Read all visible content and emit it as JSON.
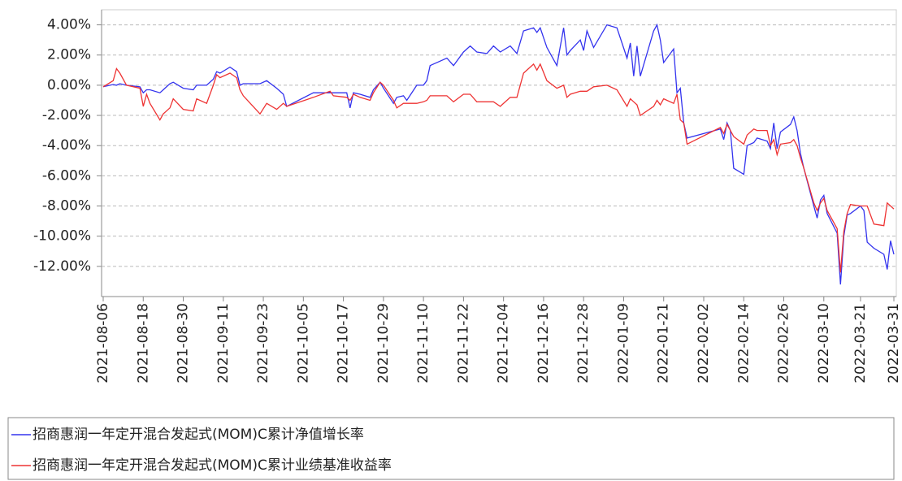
{
  "chart_data": {
    "type": "line",
    "x": [
      "2021-08-06",
      "2021-08-09",
      "2021-08-10",
      "2021-08-11",
      "2021-08-13",
      "2021-08-17",
      "2021-08-18",
      "2021-08-19",
      "2021-08-20",
      "2021-08-23",
      "2021-08-24",
      "2021-08-26",
      "2021-08-27",
      "2021-08-30",
      "2021-09-02",
      "2021-09-03",
      "2021-09-06",
      "2021-09-08",
      "2021-09-09",
      "2021-09-10",
      "2021-09-13",
      "2021-09-15",
      "2021-09-16",
      "2021-09-17",
      "2021-09-22",
      "2021-09-24",
      "2021-09-27",
      "2021-09-29",
      "2021-09-30",
      "2021-10-08",
      "2021-10-13",
      "2021-10-14",
      "2021-10-18",
      "2021-10-19",
      "2021-10-20",
      "2021-10-22",
      "2021-10-25",
      "2021-10-26",
      "2021-10-28",
      "2021-10-29",
      "2021-11-01",
      "2021-11-02",
      "2021-11-04",
      "2021-11-05",
      "2021-11-08",
      "2021-11-10",
      "2021-11-11",
      "2021-11-12",
      "2021-11-15",
      "2021-11-17",
      "2021-11-19",
      "2021-11-22",
      "2021-11-24",
      "2021-11-26",
      "2021-11-29",
      "2021-12-01",
      "2021-12-03",
      "2021-12-06",
      "2021-12-08",
      "2021-12-10",
      "2021-12-13",
      "2021-12-14",
      "2021-12-15",
      "2021-12-17",
      "2021-12-20",
      "2021-12-22",
      "2021-12-23",
      "2021-12-24",
      "2021-12-27",
      "2021-12-28",
      "2021-12-29",
      "2021-12-31",
      "2022-01-04",
      "2022-01-07",
      "2022-01-10",
      "2022-01-11",
      "2022-01-12",
      "2022-01-13",
      "2022-01-14",
      "2022-01-18",
      "2022-01-19",
      "2022-01-20",
      "2022-01-21",
      "2022-01-24",
      "2022-01-25",
      "2022-01-26",
      "2022-01-27",
      "2022-01-28",
      "2022-02-07",
      "2022-02-08",
      "2022-02-09",
      "2022-02-10",
      "2022-02-11",
      "2022-02-14",
      "2022-02-15",
      "2022-02-17",
      "2022-02-18",
      "2022-02-21",
      "2022-02-22",
      "2022-02-23",
      "2022-02-24",
      "2022-02-25",
      "2022-02-28",
      "2022-03-01",
      "2022-03-02",
      "2022-03-03",
      "2022-03-04",
      "2022-03-07",
      "2022-03-08",
      "2022-03-09",
      "2022-03-10",
      "2022-03-11",
      "2022-03-14",
      "2022-03-15",
      "2022-03-16",
      "2022-03-17",
      "2022-03-18",
      "2022-03-21",
      "2022-03-22",
      "2022-03-23",
      "2022-03-25",
      "2022-03-28",
      "2022-03-29",
      "2022-03-30",
      "2022-03-31"
    ],
    "series": [
      {
        "name": "招商惠润一年定开混合发起式(MOM)C累计净值增长率",
        "color": "#3333ee",
        "values": [
          -0.1,
          0.05,
          0.0,
          0.1,
          0.0,
          -0.1,
          -0.5,
          -0.3,
          -0.3,
          -0.5,
          -0.3,
          0.1,
          0.2,
          -0.2,
          -0.3,
          0.0,
          0.0,
          0.4,
          0.9,
          0.8,
          1.2,
          0.9,
          0.0,
          0.1,
          0.1,
          0.3,
          -0.2,
          -0.6,
          -1.4,
          -0.5,
          -0.5,
          -0.5,
          -0.5,
          -1.5,
          -0.5,
          -0.6,
          -0.8,
          -0.3,
          0.2,
          -0.2,
          -1.2,
          -0.8,
          -0.7,
          -1.0,
          0.0,
          0.0,
          0.3,
          1.3,
          1.6,
          1.8,
          1.3,
          2.2,
          2.6,
          2.2,
          2.1,
          2.6,
          2.2,
          2.6,
          2.1,
          3.6,
          3.8,
          3.5,
          3.8,
          2.5,
          1.3,
          3.8,
          2.0,
          2.3,
          3.0,
          2.3,
          3.6,
          2.5,
          4.0,
          3.8,
          1.8,
          2.8,
          0.6,
          2.6,
          0.6,
          3.6,
          4.0,
          3.0,
          1.5,
          2.4,
          -0.5,
          -0.2,
          -2.5,
          -3.5,
          -2.9,
          -3.6,
          -2.5,
          -3.0,
          -5.5,
          -5.9,
          -4.0,
          -3.8,
          -3.5,
          -3.7,
          -4.2,
          -2.5,
          -4.2,
          -3.1,
          -2.6,
          -2.1,
          -3.0,
          -4.5,
          -5.5,
          -8.0,
          -8.8,
          -7.6,
          -7.3,
          -8.5,
          -9.8,
          -13.2,
          -10.0,
          -8.6,
          -8.5,
          -8.0,
          -8.3,
          -10.4,
          -10.8,
          -11.2,
          -12.2,
          -10.3,
          -11.2
        ]
      },
      {
        "name": "招商惠润一年定开混合发起式(MOM)C累计业绩基准收益率",
        "color": "#ee3333",
        "values": [
          -0.1,
          0.3,
          1.1,
          0.8,
          0.0,
          -0.2,
          -1.4,
          -0.6,
          -1.2,
          -2.3,
          -1.9,
          -1.5,
          -0.9,
          -1.6,
          -1.7,
          -0.9,
          -1.2,
          0.0,
          0.7,
          0.5,
          0.8,
          0.5,
          -0.3,
          -0.7,
          -1.9,
          -1.2,
          -1.6,
          -1.2,
          -1.4,
          -0.8,
          -0.4,
          -0.7,
          -0.8,
          -1.0,
          -0.6,
          -0.8,
          -1.0,
          -0.5,
          0.2,
          0.0,
          -1.0,
          -1.5,
          -1.2,
          -1.2,
          -1.2,
          -1.1,
          -1.0,
          -0.7,
          -0.7,
          -0.7,
          -1.1,
          -0.6,
          -0.6,
          -1.1,
          -1.1,
          -1.1,
          -1.4,
          -0.8,
          -0.8,
          0.8,
          1.4,
          1.0,
          1.4,
          0.3,
          -0.2,
          0.0,
          -0.8,
          -0.6,
          -0.4,
          -0.4,
          -0.4,
          -0.1,
          0.0,
          -0.3,
          -1.4,
          -0.9,
          -1.1,
          -1.3,
          -2.0,
          -1.4,
          -1.0,
          -1.3,
          -0.9,
          -1.2,
          -0.6,
          -2.3,
          -2.5,
          -3.9,
          -2.8,
          -3.2,
          -2.6,
          -3.0,
          -3.4,
          -3.9,
          -3.3,
          -2.9,
          -3.0,
          -3.0,
          -4.0,
          -3.6,
          -4.6,
          -3.9,
          -3.8,
          -3.6,
          -4.0,
          -4.8,
          -5.5,
          -7.8,
          -8.3,
          -7.8,
          -7.5,
          -8.3,
          -9.5,
          -12.4,
          -9.7,
          -8.5,
          -7.9,
          -8.0,
          -8.0,
          -8.0,
          -9.2,
          -9.3,
          -7.8,
          -8.0,
          -8.2
        ]
      }
    ],
    "xlim": [
      "2021-08-06",
      "2022-03-31"
    ],
    "xticks": [
      "2021-08-06",
      "2021-08-18",
      "2021-08-30",
      "2021-09-11",
      "2021-09-23",
      "2021-10-05",
      "2021-10-17",
      "2021-10-29",
      "2021-11-10",
      "2021-11-22",
      "2021-12-04",
      "2021-12-16",
      "2021-12-28",
      "2022-01-09",
      "2022-01-21",
      "2022-02-02",
      "2022-02-14",
      "2022-02-26",
      "2022-03-10",
      "2022-03-21",
      "2022-03-31"
    ],
    "ylim": [
      -14,
      5
    ],
    "yticks": [
      {
        "value": 4,
        "label": "4.00%"
      },
      {
        "value": 2,
        "label": "2.00%"
      },
      {
        "value": 0,
        "label": "0.00%"
      },
      {
        "value": -2,
        "label": "-2.00%"
      },
      {
        "value": -4,
        "label": "-4.00%"
      },
      {
        "value": -6,
        "label": "-6.00%"
      },
      {
        "value": -8,
        "label": "-8.00%"
      },
      {
        "value": -10,
        "label": "-10.00%"
      },
      {
        "value": -12,
        "label": "-12.00%"
      }
    ],
    "grid": true,
    "legend": "bottom"
  }
}
